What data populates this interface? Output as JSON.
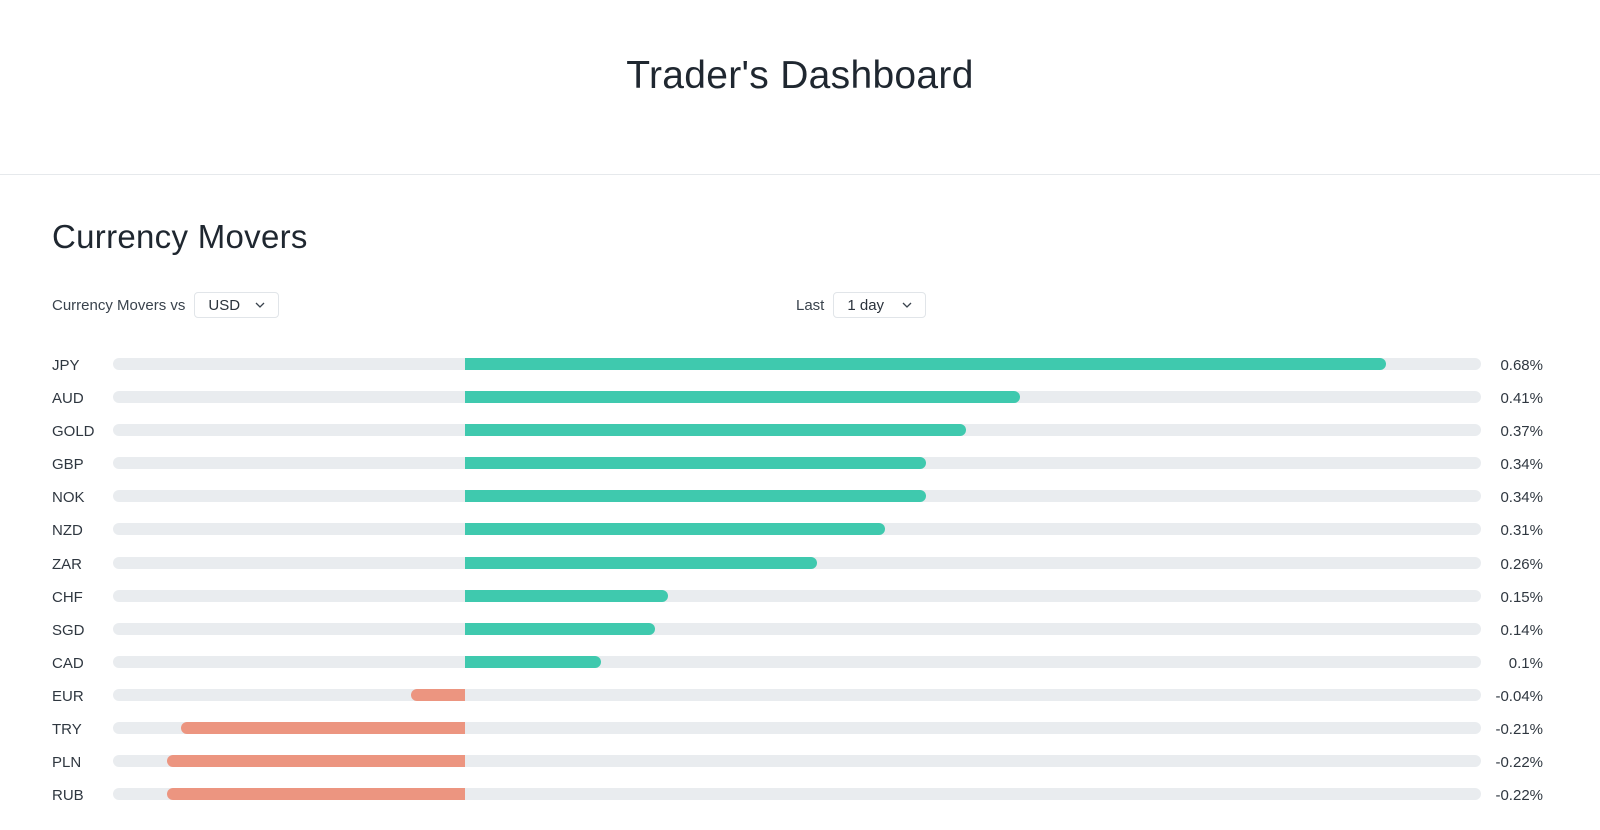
{
  "header": {
    "title": "Trader's Dashboard"
  },
  "section": {
    "title": "Currency Movers"
  },
  "controls": {
    "vs_label": "Currency Movers vs",
    "vs_value": "USD",
    "period_label": "Last",
    "period_value": "1 day"
  },
  "colors": {
    "positive": "#3fc9ae",
    "negative": "#ec9580",
    "track": "#e9ecef"
  },
  "chart_data": {
    "type": "bar",
    "orientation": "horizontal",
    "xlim": [
      -0.26,
      0.75
    ],
    "categories": [
      "JPY",
      "AUD",
      "GOLD",
      "GBP",
      "NOK",
      "NZD",
      "ZAR",
      "CHF",
      "SGD",
      "CAD",
      "EUR",
      "TRY",
      "PLN",
      "RUB"
    ],
    "values": [
      0.68,
      0.41,
      0.37,
      0.34,
      0.34,
      0.31,
      0.26,
      0.15,
      0.14,
      0.1,
      -0.04,
      -0.21,
      -0.22,
      -0.22
    ],
    "value_labels": [
      "0.68%",
      "0.41%",
      "0.37%",
      "0.34%",
      "0.34%",
      "0.31%",
      "0.26%",
      "0.15%",
      "0.14%",
      "0.1%",
      "-0.04%",
      "-0.21%",
      "-0.22%",
      "-0.22%"
    ]
  }
}
